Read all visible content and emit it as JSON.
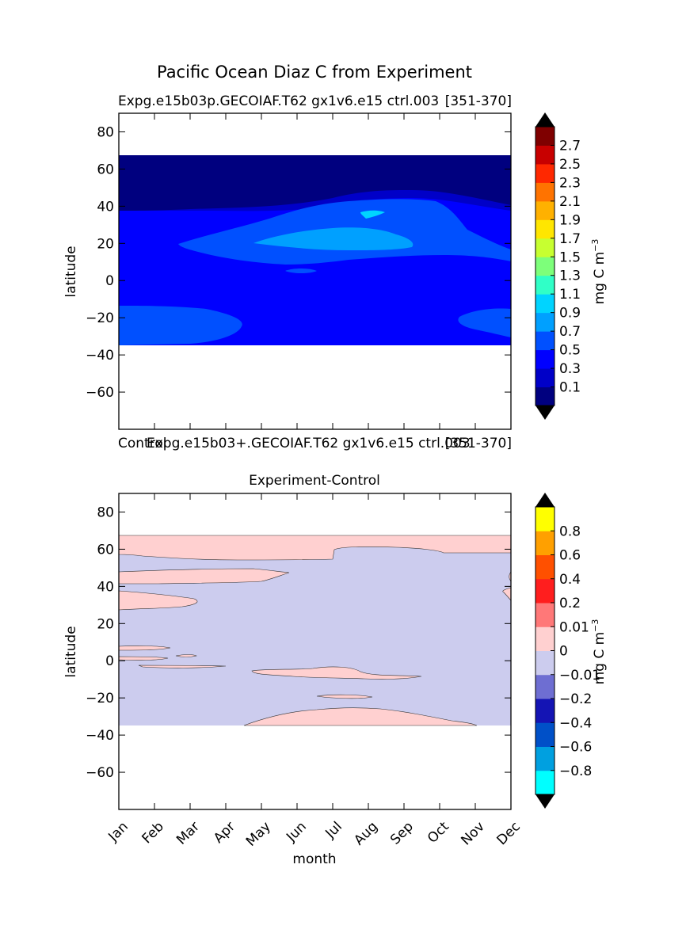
{
  "figure": {
    "title": "Pacific Ocean Diaz C from Experiment"
  },
  "chart_data": [
    {
      "type": "heatmap",
      "title_left": "Expg.e15b03p.GECOIAF.T62 gx1v6.e15 ctrl.003",
      "title_right": "[351-370]",
      "ylabel": "latitude",
      "xlabel": "",
      "ylim": [
        -80,
        90
      ],
      "xlim": [
        0,
        11
      ],
      "yticks": [
        -60,
        -40,
        -20,
        0,
        20,
        40,
        60,
        80
      ],
      "data_lat_range": [
        -34,
        67
      ],
      "colorbar": {
        "label": "mg C m",
        "label_exp": "−3",
        "ticks": [
          "0.1",
          "0.3",
          "0.5",
          "0.7",
          "0.9",
          "1.1",
          "1.3",
          "1.5",
          "1.7",
          "1.9",
          "2.1",
          "2.3",
          "2.5",
          "2.7"
        ],
        "bands": [
          "#00007f",
          "#0000c8",
          "#0000ff",
          "#0050ff",
          "#00a0ff",
          "#00d4ff",
          "#30ffc7",
          "#7dff7a",
          "#c7ff30",
          "#ffe600",
          "#ffb100",
          "#ff7300",
          "#ff2800",
          "#c80000",
          "#7f0000"
        ],
        "under_color": "#000000",
        "over_color": "#000000"
      },
      "regions": [
        {
          "level": "0.3-0.5",
          "color": "#0000ff"
        },
        {
          "level": "0.1-0.3",
          "color": "#0000c8"
        },
        {
          "level": "<0.1",
          "color": "#00007f"
        },
        {
          "level": "0.5-0.7",
          "color": "#0050ff"
        },
        {
          "level": "0.7-0.9",
          "color": "#00a0ff"
        },
        {
          "level": "0.9-1.1",
          "color": "#00d4ff"
        }
      ]
    },
    {
      "type": "heatmap",
      "title_left": "Control",
      "title_mid": "Expg.e15b03+.GECOIAF.T62 gx1v6.e15 ctrl.003",
      "title_right": "[351-370]",
      "title_center": "Experiment-Control",
      "ylabel": "latitude",
      "xlabel": "month",
      "ylim": [
        -80,
        90
      ],
      "xlim": [
        0,
        11
      ],
      "yticks": [
        -60,
        -40,
        -20,
        0,
        20,
        40,
        60,
        80
      ],
      "xticks": [
        "Jan",
        "Feb",
        "Mar",
        "Apr",
        "May",
        "Jun",
        "Jul",
        "Aug",
        "Sep",
        "Oct",
        "Nov",
        "Dec"
      ],
      "data_lat_range": [
        -34,
        67
      ],
      "colorbar": {
        "label": "mg C m",
        "label_exp": "−3",
        "ticks": [
          "-0.8",
          "-0.6",
          "-0.4",
          "-0.2",
          "-0.01",
          "0",
          "0.01",
          "0.2",
          "0.4",
          "0.6",
          "0.8"
        ],
        "bands": [
          "#00ffff",
          "#00a0e0",
          "#0050c8",
          "#1414b4",
          "#6e6ed2",
          "#ccccee",
          "#ffd0d0",
          "#ff7878",
          "#ff1e1e",
          "#ff5000",
          "#ffa000",
          "#ffff00"
        ],
        "under_color": "#000000",
        "over_color": "#000000"
      },
      "regions": [
        {
          "level": "-0.01-0",
          "color": "#ccccee"
        },
        {
          "level": "0-0.01",
          "color": "#ffd0d0"
        }
      ]
    }
  ]
}
